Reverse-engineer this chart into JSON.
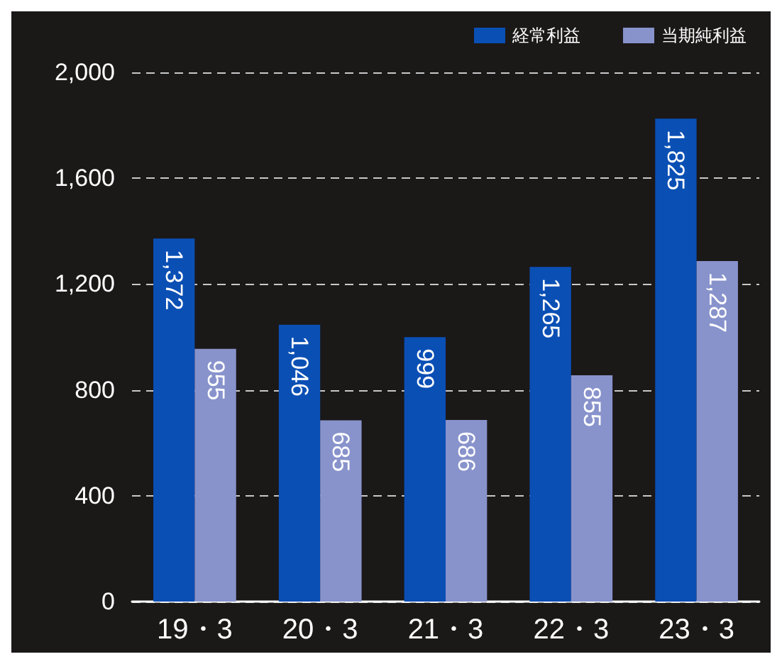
{
  "chart_data": {
    "type": "bar",
    "categories": [
      "19・3",
      "20・3",
      "21・3",
      "22・3",
      "23・3"
    ],
    "series": [
      {
        "name": "経常利益",
        "color": "#0a4fb4",
        "values": [
          1372,
          1046,
          999,
          1265,
          1825
        ],
        "value_labels": [
          "1,372",
          "1,046",
          "999",
          "1,265",
          "1,825"
        ]
      },
      {
        "name": "当期純利益",
        "color": "#8893cc",
        "values": [
          955,
          685,
          686,
          855,
          1287
        ],
        "value_labels": [
          "955",
          "685",
          "686",
          "855",
          "1,287"
        ]
      }
    ],
    "ylim": [
      0,
      2000
    ],
    "yticks": [
      0,
      400,
      800,
      {
        "value": 1200,
        "label": "1,200"
      },
      {
        "value": 1600,
        "label": "1,600"
      },
      {
        "value": 2000,
        "label": "2,000"
      }
    ],
    "grid": "y",
    "legend": "top right"
  }
}
